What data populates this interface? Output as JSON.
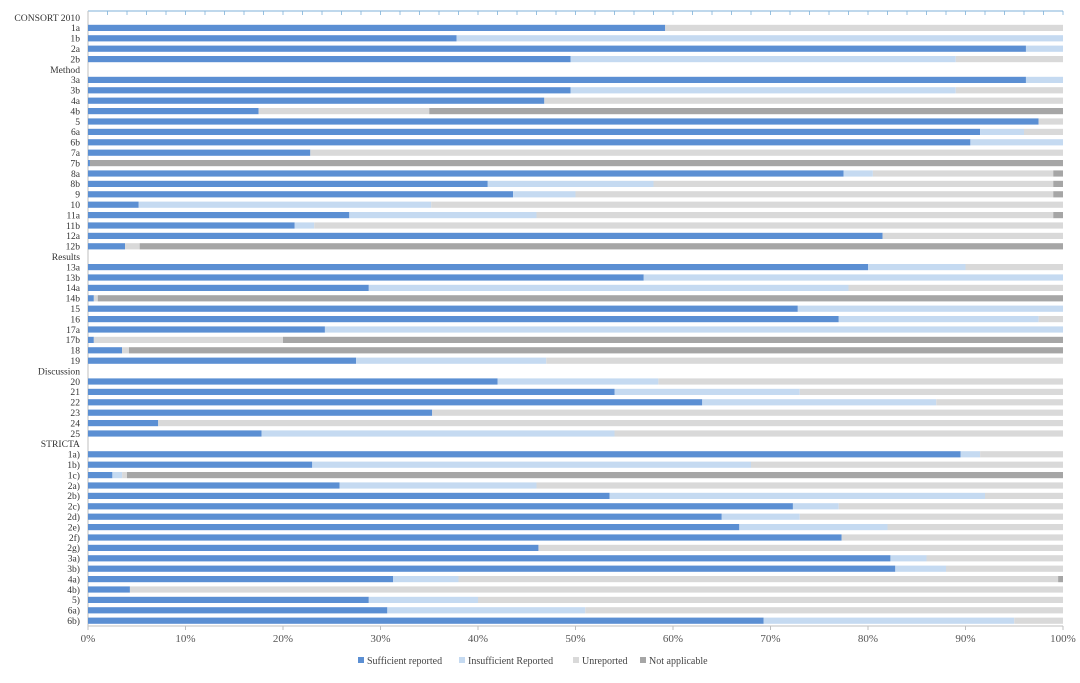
{
  "chart_data": {
    "type": "bar",
    "orientation": "horizontal",
    "stacked": true,
    "normalized": true,
    "xlim": [
      0,
      100
    ],
    "x_ticks": [
      "0%",
      "10%",
      "20%",
      "30%",
      "40%",
      "50%",
      "60%",
      "70%",
      "80%",
      "90%",
      "100%"
    ],
    "grid": false,
    "legend_position": "bottom",
    "series": [
      {
        "name": "Sufficient reported",
        "color": "#5b8fd3"
      },
      {
        "name": "Insufficient Reported",
        "color": "#c5daf1"
      },
      {
        "name": "Unreported",
        "color": "#d9d9d9"
      },
      {
        "name": "Not applicable",
        "color": "#a6a6a6"
      }
    ],
    "rows": [
      {
        "label": "CONSORT 2010",
        "kind": "section"
      },
      {
        "label": "1a",
        "kind": "item",
        "values": [
          59.2,
          0,
          40.8,
          0
        ]
      },
      {
        "label": "1b",
        "kind": "item",
        "values": [
          37.8,
          62.2,
          0,
          0
        ]
      },
      {
        "label": "2a",
        "kind": "item",
        "values": [
          96.2,
          3.8,
          0,
          0
        ]
      },
      {
        "label": "2b",
        "kind": "item",
        "values": [
          49.5,
          39.5,
          11.0,
          0
        ]
      },
      {
        "label": "Method",
        "kind": "section"
      },
      {
        "label": "3a",
        "kind": "item",
        "values": [
          96.2,
          3.8,
          0,
          0
        ]
      },
      {
        "label": "3b",
        "kind": "item",
        "values": [
          49.5,
          39.5,
          11.0,
          0
        ]
      },
      {
        "label": "4a",
        "kind": "item",
        "values": [
          46.8,
          0,
          53.2,
          0
        ]
      },
      {
        "label": "4b",
        "kind": "item",
        "values": [
          17.5,
          0,
          17.5,
          65.0
        ]
      },
      {
        "label": "5",
        "kind": "item",
        "values": [
          97.5,
          0,
          2.5,
          0
        ]
      },
      {
        "label": "6a",
        "kind": "item",
        "values": [
          91.5,
          4.5,
          4.0,
          0
        ]
      },
      {
        "label": "6b",
        "kind": "item",
        "values": [
          90.5,
          9.5,
          0,
          0
        ]
      },
      {
        "label": "7a",
        "kind": "item",
        "values": [
          22.8,
          0,
          77.2,
          0
        ]
      },
      {
        "label": "7b",
        "kind": "item",
        "values": [
          0.2,
          0,
          0,
          99.8
        ]
      },
      {
        "label": "8a",
        "kind": "item",
        "values": [
          77.5,
          3.0,
          18.5,
          1.0
        ]
      },
      {
        "label": "8b",
        "kind": "item",
        "values": [
          41.0,
          17.0,
          41.0,
          1.0
        ]
      },
      {
        "label": "9",
        "kind": "item",
        "values": [
          43.6,
          6.4,
          49.0,
          1.0
        ]
      },
      {
        "label": "10",
        "kind": "item",
        "values": [
          5.2,
          30.0,
          64.8,
          0
        ]
      },
      {
        "label": "11a",
        "kind": "item",
        "values": [
          26.8,
          19.2,
          53.0,
          1.0
        ]
      },
      {
        "label": "11b",
        "kind": "item",
        "values": [
          21.2,
          2.0,
          76.8,
          0
        ]
      },
      {
        "label": "12a",
        "kind": "item",
        "values": [
          81.5,
          0,
          18.5,
          0
        ]
      },
      {
        "label": "12b",
        "kind": "item",
        "values": [
          3.8,
          0,
          1.5,
          94.7
        ]
      },
      {
        "label": "Results",
        "kind": "section"
      },
      {
        "label": "13a",
        "kind": "item",
        "values": [
          80.0,
          10.0,
          10.0,
          0
        ]
      },
      {
        "label": "13b",
        "kind": "item",
        "values": [
          57.0,
          43.0,
          0,
          0
        ]
      },
      {
        "label": "14a",
        "kind": "item",
        "values": [
          28.8,
          49.2,
          22.0,
          0
        ]
      },
      {
        "label": "14b",
        "kind": "item",
        "values": [
          0.6,
          0,
          0.4,
          99.0
        ]
      },
      {
        "label": "15",
        "kind": "item",
        "values": [
          72.8,
          27.2,
          0,
          0
        ]
      },
      {
        "label": "16",
        "kind": "item",
        "values": [
          77.0,
          20.5,
          2.5,
          0
        ]
      },
      {
        "label": "17a",
        "kind": "item",
        "values": [
          24.3,
          75.7,
          0,
          0
        ]
      },
      {
        "label": "17b",
        "kind": "item",
        "values": [
          0.6,
          0,
          19.4,
          80.0
        ]
      },
      {
        "label": "18",
        "kind": "item",
        "values": [
          3.5,
          0,
          0.7,
          95.8
        ]
      },
      {
        "label": "19",
        "kind": "item",
        "values": [
          27.5,
          19.5,
          53.0,
          0
        ]
      },
      {
        "label": "Discussion",
        "kind": "section"
      },
      {
        "label": "20",
        "kind": "item",
        "values": [
          42.0,
          16.5,
          41.5,
          0
        ]
      },
      {
        "label": "21",
        "kind": "item",
        "values": [
          54.0,
          19.0,
          27.0,
          0
        ]
      },
      {
        "label": "22",
        "kind": "item",
        "values": [
          63.0,
          24.0,
          13.0,
          0
        ]
      },
      {
        "label": "23",
        "kind": "item",
        "values": [
          35.3,
          0,
          64.7,
          0
        ]
      },
      {
        "label": "24",
        "kind": "item",
        "values": [
          7.2,
          0,
          92.8,
          0
        ]
      },
      {
        "label": "25",
        "kind": "item",
        "values": [
          17.8,
          36.2,
          46.0,
          0
        ]
      },
      {
        "label": "STRICTA",
        "kind": "section"
      },
      {
        "label": "1a)",
        "kind": "item",
        "values": [
          89.5,
          2.0,
          8.5,
          0
        ]
      },
      {
        "label": "1b)",
        "kind": "item",
        "values": [
          23.0,
          45.0,
          32.0,
          0
        ]
      },
      {
        "label": "1c)",
        "kind": "item",
        "values": [
          2.5,
          1.0,
          0.5,
          96.0
        ]
      },
      {
        "label": "2a)",
        "kind": "item",
        "values": [
          25.8,
          20.2,
          54.0,
          0
        ]
      },
      {
        "label": "2b)",
        "kind": "item",
        "values": [
          53.5,
          38.5,
          8.0,
          0
        ]
      },
      {
        "label": "2c)",
        "kind": "item",
        "values": [
          72.3,
          4.7,
          23.0,
          0
        ]
      },
      {
        "label": "2d)",
        "kind": "item",
        "values": [
          65.0,
          8.0,
          27.0,
          0
        ]
      },
      {
        "label": "2e)",
        "kind": "item",
        "values": [
          66.8,
          15.2,
          18.0,
          0
        ]
      },
      {
        "label": "2f)",
        "kind": "item",
        "values": [
          77.3,
          0,
          22.7,
          0
        ]
      },
      {
        "label": "2g)",
        "kind": "item",
        "values": [
          46.2,
          0,
          53.8,
          0
        ]
      },
      {
        "label": "3a)",
        "kind": "item",
        "values": [
          82.3,
          3.7,
          14.0,
          0
        ]
      },
      {
        "label": "3b)",
        "kind": "item",
        "values": [
          82.8,
          5.2,
          12.0,
          0
        ]
      },
      {
        "label": "4a)",
        "kind": "item",
        "values": [
          31.3,
          6.7,
          61.5,
          0.5
        ]
      },
      {
        "label": "4b)",
        "kind": "item",
        "values": [
          4.3,
          0,
          95.7,
          0
        ]
      },
      {
        "label": "5)",
        "kind": "item",
        "values": [
          28.8,
          11.2,
          60.0,
          0
        ]
      },
      {
        "label": "6a)",
        "kind": "item",
        "values": [
          30.7,
          20.3,
          49.0,
          0
        ]
      },
      {
        "label": "6b)",
        "kind": "item",
        "values": [
          69.3,
          25.7,
          5.0,
          0
        ]
      }
    ]
  }
}
